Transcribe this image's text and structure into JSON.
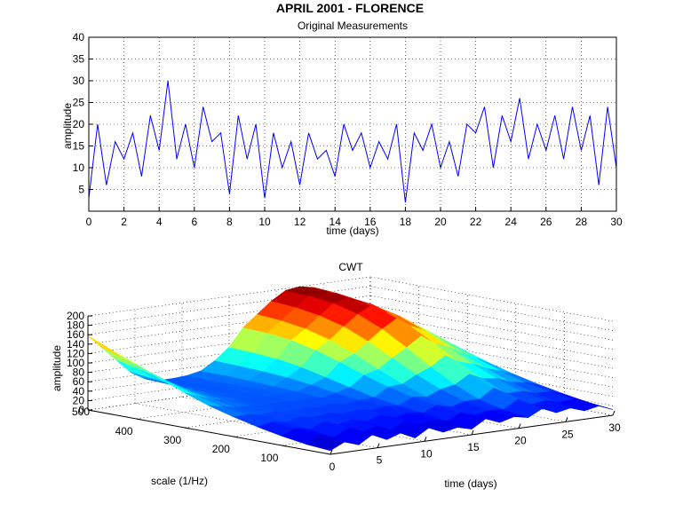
{
  "figure": {
    "title": "APRIL 2001 - FLORENCE"
  },
  "chart_data": [
    {
      "type": "line",
      "title": "Original Measurements",
      "xlabel": "time (days)",
      "ylabel": "amplitude",
      "xlim": [
        0,
        30
      ],
      "ylim": [
        0,
        40
      ],
      "xticks": [
        0,
        2,
        4,
        6,
        8,
        10,
        12,
        14,
        16,
        18,
        20,
        22,
        24,
        26,
        28,
        30
      ],
      "yticks": [
        5,
        10,
        15,
        20,
        25,
        30,
        35,
        40
      ],
      "grid": true,
      "series": [
        {
          "color": "#0000ff",
          "x": [
            0.0,
            0.5,
            1.0,
            1.5,
            2.0,
            2.5,
            3.0,
            3.5,
            4.0,
            4.5,
            5.0,
            5.5,
            6.0,
            6.5,
            7.0,
            7.5,
            8.0,
            8.5,
            9.0,
            9.5,
            10.0,
            10.5,
            11.0,
            11.5,
            12.0,
            12.5,
            13.0,
            13.5,
            14.0,
            14.5,
            15.0,
            15.5,
            16.0,
            16.5,
            17.0,
            17.5,
            18.0,
            18.5,
            19.0,
            19.5,
            20.0,
            20.5,
            21.0,
            21.5,
            22.0,
            22.5,
            23.0,
            23.5,
            24.0,
            24.5,
            25.0,
            25.5,
            26.0,
            26.5,
            27.0,
            27.5,
            28.0,
            28.5,
            29.0,
            29.5,
            30.0
          ],
          "y": [
            3,
            20,
            6,
            16,
            12,
            18,
            8,
            22,
            14,
            30,
            12,
            20,
            10,
            24,
            16,
            18,
            4,
            22,
            12,
            20,
            3,
            18,
            10,
            16,
            6,
            18,
            12,
            14,
            8,
            20,
            14,
            18,
            10,
            16,
            12,
            20,
            2,
            18,
            14,
            20,
            10,
            16,
            8,
            20,
            18,
            24,
            10,
            22,
            16,
            26,
            12,
            20,
            14,
            22,
            12,
            24,
            14,
            22,
            6,
            24,
            10
          ]
        }
      ]
    },
    {
      "type": "surface",
      "title": "CWT",
      "xlabel": "time (days)",
      "ylabel": "scale (1/Hz)",
      "zlabel": "amplitude",
      "xlim": [
        0,
        30
      ],
      "ylim": [
        0,
        500
      ],
      "zlim": [
        0,
        200
      ],
      "xticks": [
        0,
        5,
        10,
        15,
        20,
        25,
        30
      ],
      "yticks": [
        100,
        200,
        300,
        400,
        500
      ],
      "zticks": [
        0,
        20,
        40,
        60,
        80,
        100,
        120,
        140,
        160,
        180,
        200
      ],
      "colormap": "jet",
      "scales": [
        0,
        50,
        100,
        150,
        200,
        250,
        300,
        350,
        400,
        450,
        500
      ],
      "times": [
        0,
        1.5,
        3,
        4.5,
        6,
        7.5,
        9,
        10.5,
        12,
        13.5,
        15,
        16.5,
        18,
        19.5,
        21,
        22.5,
        24,
        25.5,
        27,
        28.5,
        30
      ],
      "z": [
        [
          8,
          22,
          12,
          30,
          15,
          25,
          10,
          28,
          14,
          20,
          12,
          30,
          18,
          26,
          20,
          35,
          22,
          28,
          18,
          24,
          12
        ],
        [
          12,
          28,
          18,
          35,
          22,
          30,
          18,
          32,
          20,
          26,
          20,
          34,
          24,
          30,
          28,
          45,
          30,
          35,
          26,
          30,
          18
        ],
        [
          20,
          32,
          26,
          38,
          28,
          34,
          26,
          36,
          26,
          32,
          28,
          40,
          32,
          40,
          40,
          60,
          44,
          45,
          36,
          36,
          26
        ],
        [
          30,
          36,
          32,
          40,
          34,
          38,
          32,
          38,
          32,
          36,
          34,
          48,
          44,
          56,
          62,
          80,
          66,
          62,
          50,
          46,
          36
        ],
        [
          42,
          42,
          38,
          42,
          38,
          40,
          36,
          40,
          36,
          40,
          42,
          60,
          62,
          78,
          90,
          110,
          92,
          84,
          70,
          60,
          48
        ],
        [
          56,
          50,
          44,
          44,
          40,
          42,
          40,
          42,
          40,
          46,
          54,
          76,
          84,
          104,
          122,
          142,
          122,
          110,
          92,
          78,
          62
        ],
        [
          74,
          62,
          52,
          46,
          42,
          42,
          42,
          44,
          44,
          54,
          66,
          94,
          108,
          130,
          152,
          170,
          150,
          136,
          116,
          98,
          78
        ],
        [
          94,
          78,
          62,
          50,
          44,
          42,
          42,
          44,
          46,
          60,
          78,
          110,
          128,
          152,
          174,
          190,
          170,
          156,
          136,
          116,
          94
        ],
        [
          116,
          94,
          74,
          56,
          46,
          42,
          42,
          44,
          48,
          64,
          86,
          122,
          142,
          166,
          188,
          196,
          182,
          168,
          150,
          130,
          108
        ],
        [
          136,
          110,
          86,
          62,
          48,
          42,
          42,
          44,
          50,
          66,
          90,
          128,
          150,
          174,
          194,
          198,
          190,
          176,
          160,
          140,
          118
        ],
        [
          158,
          128,
          98,
          68,
          50,
          42,
          42,
          44,
          50,
          68,
          92,
          130,
          154,
          178,
          196,
          200,
          194,
          182,
          166,
          148,
          126
        ]
      ]
    }
  ]
}
